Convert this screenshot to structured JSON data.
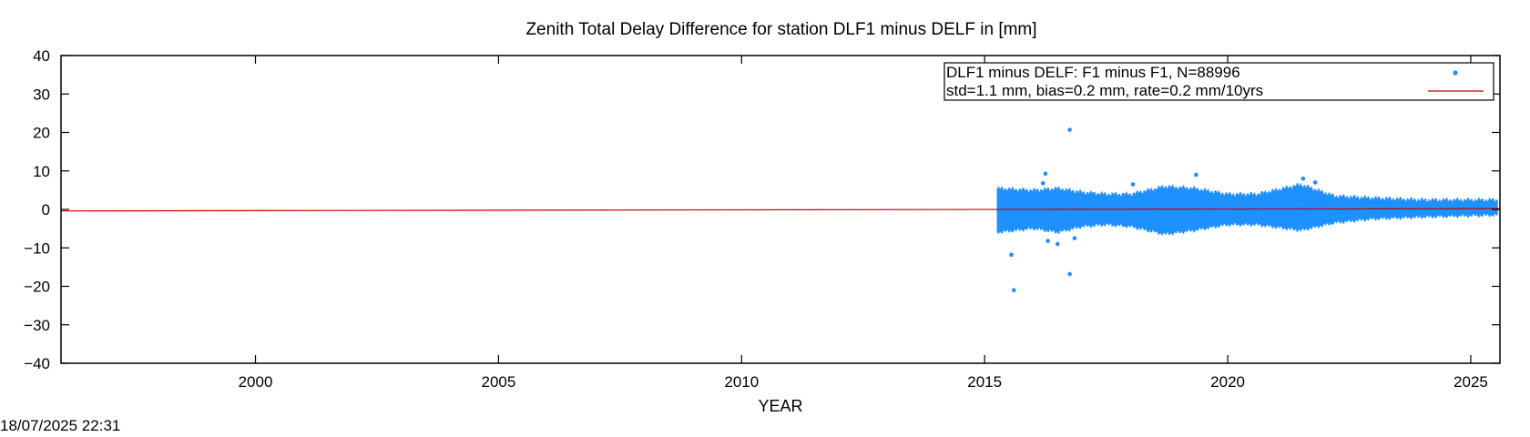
{
  "chart_data": {
    "type": "scatter",
    "title": "Zenith Total Delay Difference for station DLF1 minus DELF in [mm]",
    "xlabel": "YEAR",
    "ylabel": "",
    "xlim": [
      1996.0,
      2025.6
    ],
    "ylim": [
      -40,
      40
    ],
    "x_ticks": [
      2000,
      2005,
      2010,
      2015,
      2020,
      2025
    ],
    "y_ticks": [
      -40,
      -30,
      -20,
      -10,
      0,
      10,
      20,
      30,
      40
    ],
    "grid": false,
    "legend_position": "top-right",
    "series": [
      {
        "name": "DLF1 minus DELF: F1 minus F1, N=88996",
        "kind": "points",
        "color": "#1e90ff",
        "x_range": [
          2015.25,
          2025.55
        ],
        "band": [
          {
            "x": 2015.25,
            "lo": -6.0,
            "hi": 5.5
          },
          {
            "x": 2016.0,
            "lo": -5.0,
            "hi": 5.0
          },
          {
            "x": 2016.5,
            "lo": -6.0,
            "hi": 5.5
          },
          {
            "x": 2017.0,
            "lo": -4.5,
            "hi": 4.5
          },
          {
            "x": 2017.5,
            "lo": -4.0,
            "hi": 4.0
          },
          {
            "x": 2018.0,
            "lo": -4.5,
            "hi": 4.0
          },
          {
            "x": 2018.7,
            "lo": -6.5,
            "hi": 6.0
          },
          {
            "x": 2019.3,
            "lo": -5.5,
            "hi": 5.5
          },
          {
            "x": 2020.0,
            "lo": -4.0,
            "hi": 4.0
          },
          {
            "x": 2020.6,
            "lo": -4.0,
            "hi": 4.0
          },
          {
            "x": 2021.5,
            "lo": -5.5,
            "hi": 6.5
          },
          {
            "x": 2022.2,
            "lo": -3.5,
            "hi": 3.5
          },
          {
            "x": 2023.0,
            "lo": -2.5,
            "hi": 3.0
          },
          {
            "x": 2024.0,
            "lo": -2.0,
            "hi": 2.5
          },
          {
            "x": 2025.55,
            "lo": -1.5,
            "hi": 2.5
          }
        ],
        "outliers": [
          {
            "x": 2016.75,
            "y": 20.7
          },
          {
            "x": 2015.6,
            "y": -21.0
          },
          {
            "x": 2016.75,
            "y": -16.8
          },
          {
            "x": 2015.55,
            "y": -11.8
          },
          {
            "x": 2016.25,
            "y": 9.3
          },
          {
            "x": 2016.3,
            "y": -8.2
          },
          {
            "x": 2016.5,
            "y": -9.0
          },
          {
            "x": 2016.85,
            "y": -7.5
          },
          {
            "x": 2019.35,
            "y": 9.0
          },
          {
            "x": 2021.55,
            "y": 8.0
          },
          {
            "x": 2016.2,
            "y": 6.8
          },
          {
            "x": 2018.05,
            "y": 6.5
          },
          {
            "x": 2021.8,
            "y": 7.0
          }
        ]
      },
      {
        "name": "std=1.1 mm, bias=0.2 mm, rate=0.2 mm/10yrs",
        "kind": "line",
        "color": "#cc0000",
        "x": [
          1996.0,
          2025.6
        ],
        "y": [
          -0.4,
          0.2
        ]
      }
    ]
  },
  "timestamp": "18/07/2025 22:31"
}
